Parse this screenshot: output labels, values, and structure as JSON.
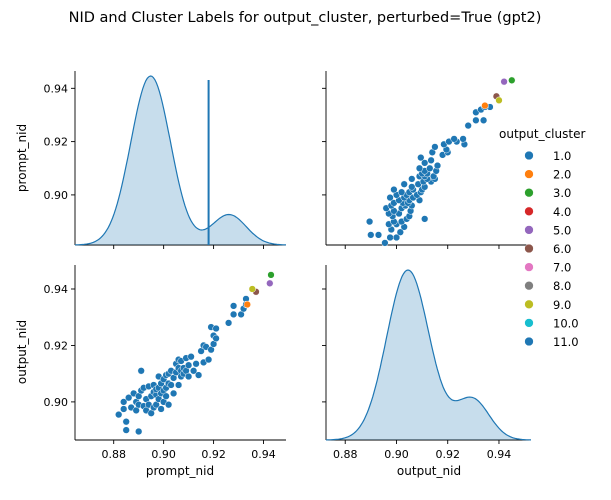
{
  "chart_data": {
    "type": "scatter",
    "title": "NID and Cluster Labels for output_cluster, perturbed=True (gpt2)",
    "variables": [
      "prompt_nid",
      "output_nid"
    ],
    "panels": {
      "upper_left": "kde of prompt_nid (hue 1.0) with spike at ~0.918 (hue 11.0)",
      "upper_right": "scatter x=output_nid, y=prompt_nid",
      "lower_left": "scatter x=prompt_nid, y=output_nid",
      "lower_right": "kde of output_nid"
    },
    "axes": {
      "prompt_nid": {
        "label": "prompt_nid",
        "range": [
          0.8645,
          0.949
        ],
        "ticks": [
          "0.88",
          "0.90",
          "0.92",
          "0.94"
        ],
        "tick_values": [
          0.88,
          0.9,
          0.92,
          0.94
        ]
      },
      "output_nid": {
        "label": "output_nid",
        "range": [
          0.8725,
          0.9525
        ],
        "ticks": [
          "0.88",
          "0.90",
          "0.92",
          "0.94"
        ],
        "tick_values": [
          0.88,
          0.9,
          0.92,
          0.94
        ]
      },
      "prompt_nid_y": {
        "range": [
          0.8812,
          0.9465
        ],
        "ticks": [
          "0.90",
          "0.92",
          "0.94"
        ],
        "tick_values": [
          0.9,
          0.92,
          0.94
        ]
      },
      "output_nid_y": {
        "range": [
          0.8865,
          0.9485
        ],
        "ticks": [
          "0.90",
          "0.92",
          "0.94"
        ],
        "tick_values": [
          0.9,
          0.92,
          0.94
        ]
      }
    },
    "legend": {
      "title": "output_cluster",
      "placement": "right",
      "entries": [
        {
          "label": "1.0",
          "color": "#1f77b4"
        },
        {
          "label": "2.0",
          "color": "#ff7f0e"
        },
        {
          "label": "3.0",
          "color": "#2ca02c"
        },
        {
          "label": "4.0",
          "color": "#d62728"
        },
        {
          "label": "5.0",
          "color": "#9467bd"
        },
        {
          "label": "6.0",
          "color": "#8c564b"
        },
        {
          "label": "7.0",
          "color": "#e377c2"
        },
        {
          "label": "8.0",
          "color": "#7f7f7f"
        },
        {
          "label": "9.0",
          "color": "#bcbd22"
        },
        {
          "label": "10.0",
          "color": "#17becf"
        },
        {
          "label": "11.0",
          "color": "#1f77b4"
        }
      ]
    },
    "series": [
      {
        "name": "1.0",
        "color": "#1f77b4",
        "points": [
          [
            0.882,
            0.8955
          ],
          [
            0.884,
            0.8975
          ],
          [
            0.885,
            0.89
          ],
          [
            0.885,
            0.893
          ],
          [
            0.884,
            0.9
          ],
          [
            0.886,
            0.9015
          ],
          [
            0.887,
            0.898
          ],
          [
            0.889,
            0.9
          ],
          [
            0.889,
            0.897
          ],
          [
            0.888,
            0.903
          ],
          [
            0.89,
            0.8895
          ],
          [
            0.89,
            0.899
          ],
          [
            0.89,
            0.902
          ],
          [
            0.891,
            0.904
          ],
          [
            0.891,
            0.911
          ],
          [
            0.892,
            0.8985
          ],
          [
            0.892,
            0.905
          ],
          [
            0.893,
            0.897
          ],
          [
            0.893,
            0.901
          ],
          [
            0.894,
            0.899
          ],
          [
            0.894,
            0.9055
          ],
          [
            0.895,
            0.896
          ],
          [
            0.895,
            0.902
          ],
          [
            0.896,
            0.898
          ],
          [
            0.896,
            0.9035
          ],
          [
            0.896,
            0.906
          ],
          [
            0.897,
            0.899
          ],
          [
            0.897,
            0.9025
          ],
          [
            0.897,
            0.9045
          ],
          [
            0.898,
            0.901
          ],
          [
            0.898,
            0.905
          ],
          [
            0.898,
            0.909
          ],
          [
            0.899,
            0.8975
          ],
          [
            0.899,
            0.903
          ],
          [
            0.899,
            0.9065
          ],
          [
            0.9,
            0.9
          ],
          [
            0.9,
            0.904
          ],
          [
            0.9,
            0.908
          ],
          [
            0.901,
            0.902
          ],
          [
            0.901,
            0.905
          ],
          [
            0.901,
            0.9095
          ],
          [
            0.902,
            0.899
          ],
          [
            0.902,
            0.9065
          ],
          [
            0.902,
            0.91
          ],
          [
            0.903,
            0.906
          ],
          [
            0.903,
            0.911
          ],
          [
            0.904,
            0.903
          ],
          [
            0.904,
            0.9085
          ],
          [
            0.905,
            0.9105
          ],
          [
            0.905,
            0.9135
          ],
          [
            0.906,
            0.906
          ],
          [
            0.906,
            0.912
          ],
          [
            0.906,
            0.915
          ],
          [
            0.907,
            0.909
          ],
          [
            0.907,
            0.911
          ],
          [
            0.907,
            0.9145
          ],
          [
            0.908,
            0.91
          ],
          [
            0.908,
            0.912
          ],
          [
            0.909,
            0.911
          ],
          [
            0.909,
            0.9155
          ],
          [
            0.91,
            0.913
          ],
          [
            0.91,
            0.909
          ],
          [
            0.911,
            0.916
          ],
          [
            0.912,
            0.911
          ],
          [
            0.913,
            0.9135
          ],
          [
            0.914,
            0.9095
          ],
          [
            0.915,
            0.918
          ],
          [
            0.916,
            0.92
          ],
          [
            0.916,
            0.914
          ],
          [
            0.917,
            0.9195
          ],
          [
            0.918,
            0.915
          ],
          [
            0.919,
            0.9185
          ],
          [
            0.919,
            0.9265
          ],
          [
            0.92,
            0.9205
          ],
          [
            0.92,
            0.9235
          ],
          [
            0.921,
            0.926
          ],
          [
            0.921,
            0.9225
          ],
          [
            0.926,
            0.928
          ],
          [
            0.928,
            0.931
          ],
          [
            0.928,
            0.934
          ],
          [
            0.931,
            0.931
          ],
          [
            0.932,
            0.933
          ],
          [
            0.933,
            0.9365
          ],
          [
            0.933,
            0.9345
          ]
        ]
      },
      {
        "name": "2.0",
        "color": "#ff7f0e",
        "points": [
          [
            0.9335,
            0.9345
          ]
        ]
      },
      {
        "name": "3.0",
        "color": "#2ca02c",
        "points": [
          [
            0.943,
            0.945
          ]
        ]
      },
      {
        "name": "5.0",
        "color": "#9467bd",
        "points": [
          [
            0.9425,
            0.942
          ]
        ]
      },
      {
        "name": "6.0",
        "color": "#8c564b",
        "points": [
          [
            0.937,
            0.939
          ]
        ]
      },
      {
        "name": "9.0",
        "color": "#bcbd22",
        "points": [
          [
            0.9355,
            0.94
          ]
        ]
      }
    ],
    "kde_prompt_nid": {
      "peak_x": 0.898,
      "shoulder_x": 0.9275,
      "spike_x": 0.918
    },
    "kde_output_nid": {
      "peak_x": 0.9045,
      "shoulder_x": 0.928
    }
  }
}
